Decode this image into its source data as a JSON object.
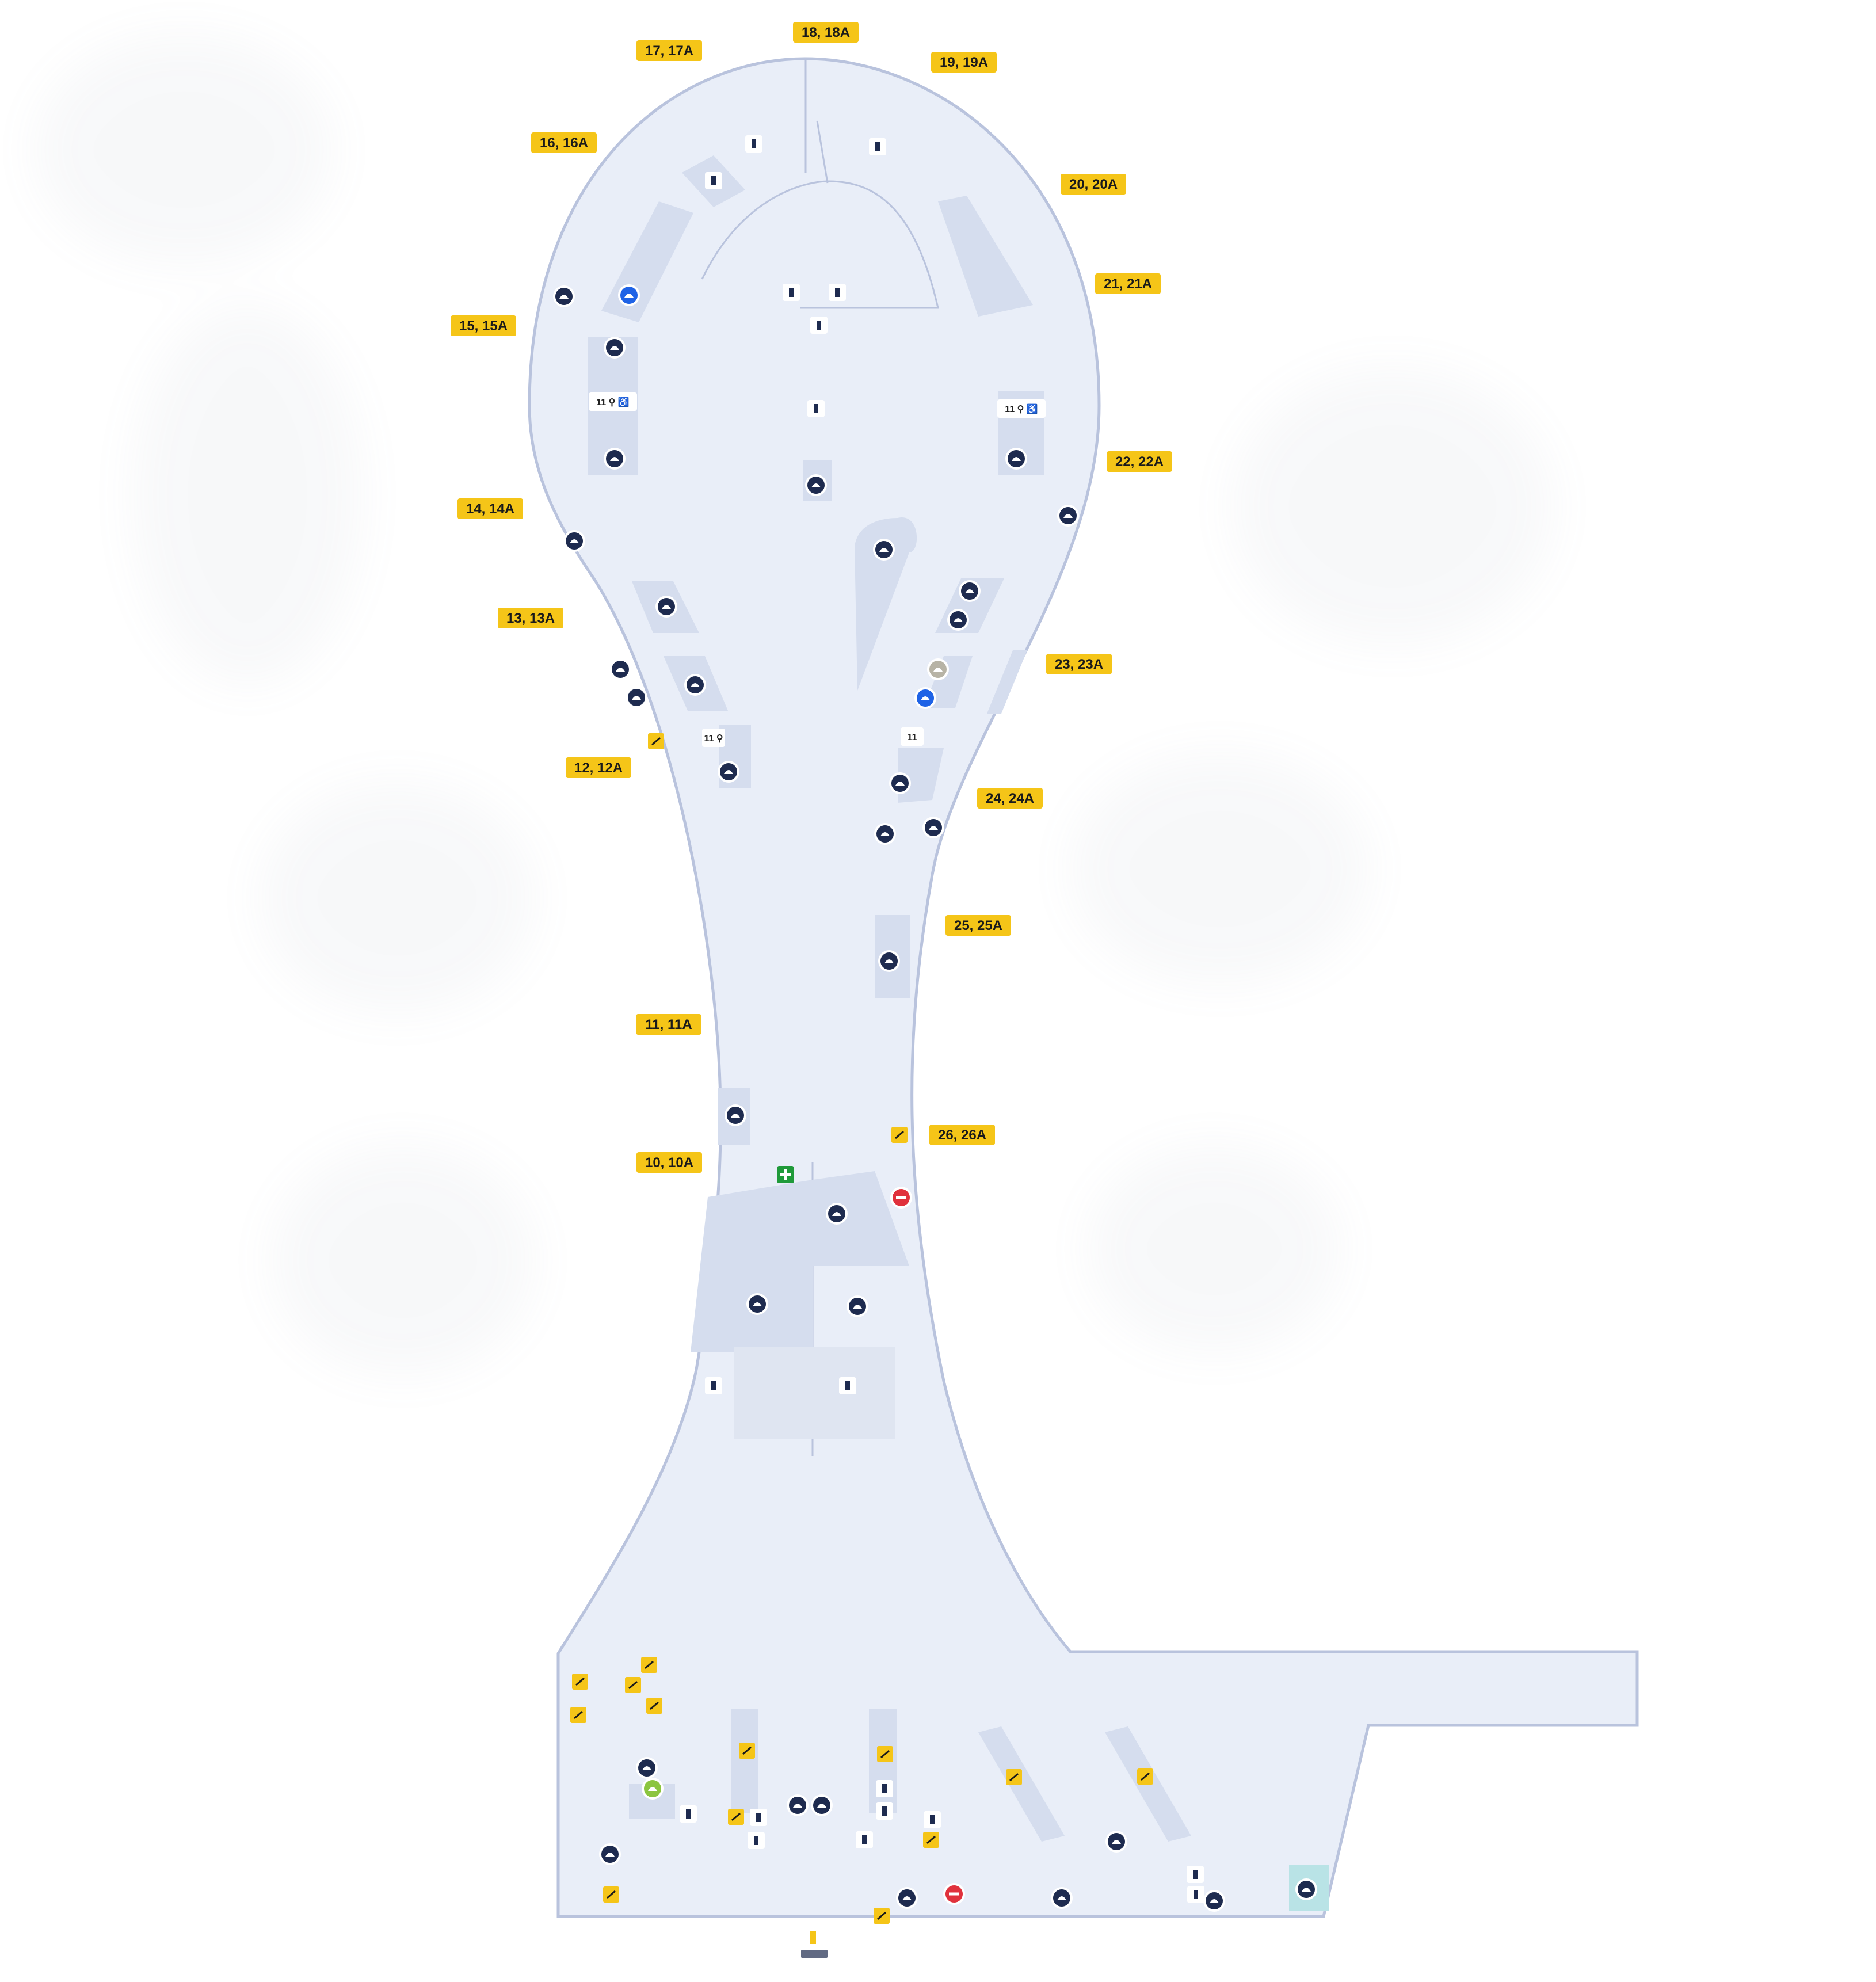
{
  "colors": {
    "background": "#ffffff",
    "floor": "#e9eef8",
    "outline": "#b9c3dd",
    "zone": "#d5ddee",
    "gate_badge": "#f5c518",
    "poi_dark": "#1e2b4f",
    "poi_blue": "#1f63e6",
    "poi_red": "#e0313c",
    "poi_green": "#1f9a3a",
    "poi_teal": "#b9e3e6"
  },
  "gates": [
    {
      "label": "17, 17A"
    },
    {
      "label": "18, 18A"
    },
    {
      "label": "19, 19A"
    },
    {
      "label": "16, 16A"
    },
    {
      "label": "20, 20A"
    },
    {
      "label": "21, 21A"
    },
    {
      "label": "15, 15A"
    },
    {
      "label": "22, 22A"
    },
    {
      "label": "14, 14A"
    },
    {
      "label": "13, 13A"
    },
    {
      "label": "23, 23A"
    },
    {
      "label": "12, 12A"
    },
    {
      "label": "24, 24A"
    },
    {
      "label": "25, 25A"
    },
    {
      "label": "11, 11A"
    },
    {
      "label": "26, 26A"
    },
    {
      "label": "10, 10A"
    }
  ],
  "shop_tags": [
    {
      "text": "11 ⚲ ♿"
    },
    {
      "text": "11 ⚲ ♿"
    },
    {
      "text": "11 ⚲"
    },
    {
      "text": "11"
    }
  ],
  "icons": {
    "dining": "dining-icon",
    "information": "information-icon",
    "restroom": "restroom-icon",
    "elevator": "elevator-icon",
    "escalator": "escalator-icon",
    "first_aid": "first-aid-icon",
    "no_entry": "no-entry-icon",
    "exit": "exit-icon",
    "lounge": "lounge-icon",
    "currency": "currency-exchange-icon"
  }
}
